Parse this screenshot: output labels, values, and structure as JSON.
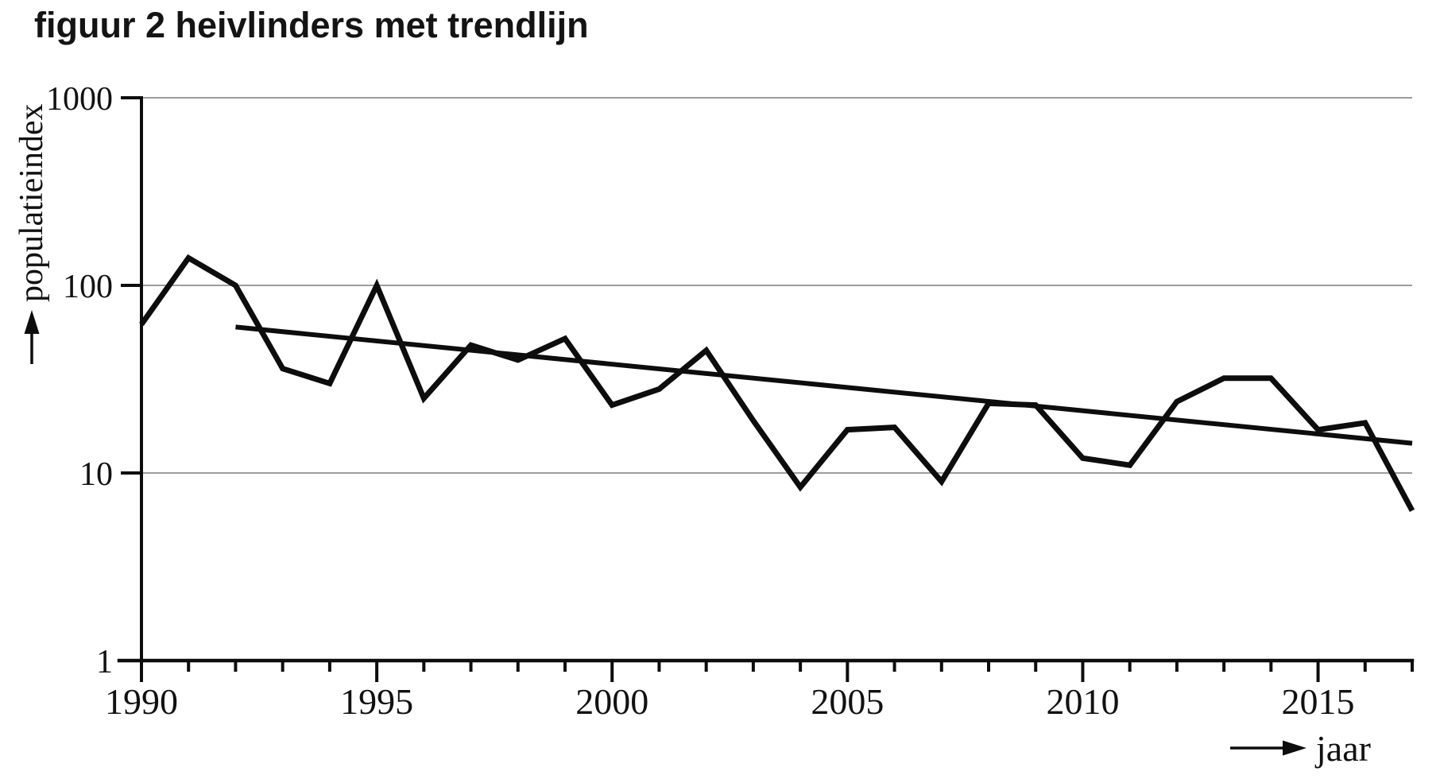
{
  "title": "figuur 2 heivlinders met trendlijn",
  "colors": {
    "line": "#0d0d0d",
    "trend": "#0d0d0d",
    "axis": "#0d0d0d",
    "grid": "#8f8f8f",
    "text": "#111111",
    "background": "#ffffff"
  },
  "chart_data": {
    "type": "line",
    "title": "figuur 2 heivlinders met trendlijn",
    "xlabel": "jaar",
    "ylabel": "populatieindex",
    "y_scale": "log",
    "ylim": [
      1,
      1000
    ],
    "yticks": [
      1,
      10,
      100,
      1000
    ],
    "xlim": [
      1990,
      2017
    ],
    "xticks_major": [
      1990,
      1995,
      2000,
      2005,
      2010,
      2015
    ],
    "xticks_minor_step": 1,
    "grid": "horizontal-log-decades",
    "legend": "none",
    "series": [
      {
        "name": "populatieindex heivlinders",
        "x": [
          1990,
          1991,
          1992,
          1993,
          1994,
          1995,
          1996,
          1997,
          1998,
          1999,
          2000,
          2001,
          2002,
          2003,
          2004,
          2005,
          2006,
          2007,
          2008,
          2009,
          2010,
          2011,
          2012,
          2013,
          2014,
          2015,
          2016,
          2017
        ],
        "values": [
          62,
          140,
          100,
          36,
          30,
          100,
          25,
          48,
          40,
          52,
          23,
          28,
          45,
          19,
          8.4,
          17,
          17.5,
          9,
          23.5,
          23,
          12,
          11,
          24,
          32,
          32,
          17,
          18.5,
          6.3
        ]
      },
      {
        "name": "trendlijn",
        "x": [
          1992,
          2017
        ],
        "values": [
          60,
          14.4
        ]
      }
    ]
  }
}
